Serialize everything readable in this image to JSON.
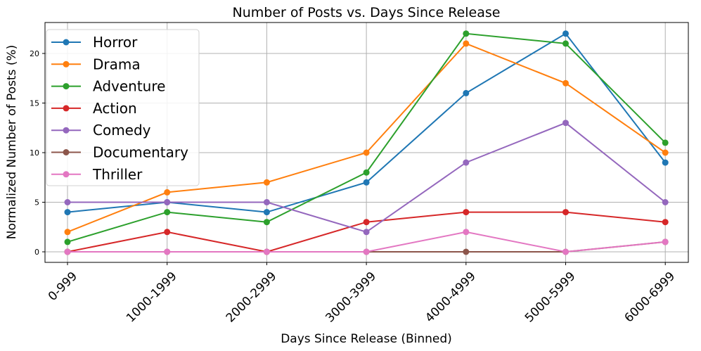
{
  "chart_data": {
    "type": "line",
    "title": "Number of Posts vs. Days Since Release",
    "xlabel": "Days Since Release (Binned)",
    "ylabel": "Normalized Number of Posts (%)",
    "categories": [
      "0-999",
      "1000-1999",
      "2000-2999",
      "3000-3999",
      "4000-4999",
      "5000-5999",
      "6000-6999"
    ],
    "yticks": [
      0,
      5,
      10,
      15,
      20
    ],
    "ylim": [
      -1,
      23
    ],
    "grid": true,
    "legend_position": "upper left",
    "series": [
      {
        "name": "Horror",
        "color": "#1f77b4",
        "values": [
          4,
          5,
          4,
          7,
          16,
          22,
          9
        ]
      },
      {
        "name": "Drama",
        "color": "#ff7f0e",
        "values": [
          2,
          6,
          7,
          10,
          21,
          17,
          10
        ]
      },
      {
        "name": "Adventure",
        "color": "#2ca02c",
        "values": [
          1,
          4,
          3,
          8,
          22,
          21,
          11
        ]
      },
      {
        "name": "Action",
        "color": "#d62728",
        "values": [
          0,
          2,
          0,
          3,
          4,
          4,
          3
        ]
      },
      {
        "name": "Comedy",
        "color": "#9467bd",
        "values": [
          5,
          5,
          5,
          2,
          9,
          13,
          5
        ]
      },
      {
        "name": "Documentary",
        "color": "#8c564b",
        "values": [
          0,
          0,
          0,
          0,
          0,
          0,
          1
        ]
      },
      {
        "name": "Thriller",
        "color": "#e377c2",
        "values": [
          0,
          0,
          0,
          0,
          2,
          0,
          1
        ]
      }
    ]
  }
}
